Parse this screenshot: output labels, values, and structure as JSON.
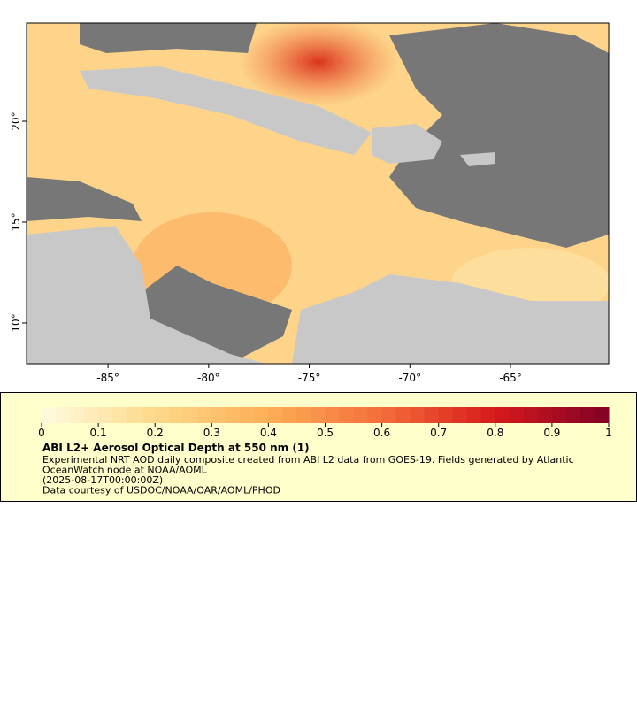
{
  "map": {
    "xlim": [
      -89.05,
      -60.12
    ],
    "ylim": [
      7.98,
      24.87
    ],
    "xticks": [
      {
        "value": -85,
        "label": "-85°"
      },
      {
        "value": -80,
        "label": "-80°"
      },
      {
        "value": -75,
        "label": "-75°"
      },
      {
        "value": -70,
        "label": "-70°"
      },
      {
        "value": -65,
        "label": "-65°"
      }
    ],
    "yticks": [
      {
        "value": 10,
        "label": "10°"
      },
      {
        "value": 15,
        "label": "15°"
      },
      {
        "value": 20,
        "label": "20°"
      }
    ]
  },
  "colorbar": {
    "range": [
      0,
      1
    ],
    "ticks": [
      0,
      0.1,
      0.2,
      0.3,
      0.4,
      0.5,
      0.6,
      0.7,
      0.8,
      0.9,
      1
    ],
    "colors": [
      "#fffbe0",
      "#fed98a",
      "#fdae56",
      "#f46d3a",
      "#d7191c",
      "#800026"
    ]
  },
  "legend": {
    "title": "ABI L2+ Aerosol Optical Depth at 550 nm (1)",
    "lines": [
      "Experimental NRT AOD daily composite created from ABI L2 data from GOES-19. Fields generated by Atlantic",
      "OceanWatch node at NOAA/AOML",
      "(2025-08-17T00:00:00Z)",
      "Data courtesy of USDOC/NOAA/OAR/AOML/PHOD"
    ]
  }
}
